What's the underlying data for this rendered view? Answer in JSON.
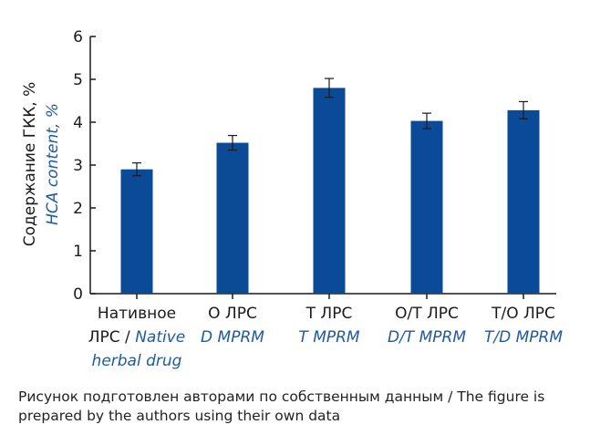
{
  "chart_data": {
    "type": "bar",
    "categories": [
      {
        "ru": "Нативное",
        "ru2": "ЛРС",
        "sep": " / ",
        "en": "Native",
        "en2": "herbal drug"
      },
      {
        "ru": "О ЛРС",
        "en": "D MPRM"
      },
      {
        "ru": "Т ЛРС",
        "en": "T MPRM"
      },
      {
        "ru": "О/Т ЛРС",
        "en": "D/T MPRM"
      },
      {
        "ru": "Т/О ЛРС",
        "en": "T/D MPRM"
      }
    ],
    "values": [
      2.9,
      3.52,
      4.8,
      4.03,
      4.28
    ],
    "errors": [
      0.15,
      0.17,
      0.22,
      0.18,
      0.2
    ],
    "ylabel_ru": "Содержание ГКК, %",
    "ylabel_en": "HCA content, %",
    "ylim": [
      0,
      6
    ],
    "yticks": [
      "0",
      "1",
      "2",
      "3",
      "4",
      "5",
      "6"
    ],
    "grid": false
  },
  "caption": "Рисунок подготовлен авторами по собственным данным / The figure is prepared by the authors using their own data",
  "colors": {
    "bar": "#0a4a96",
    "english_label": "#1f5a9e",
    "axis": "#1a1a1a"
  }
}
